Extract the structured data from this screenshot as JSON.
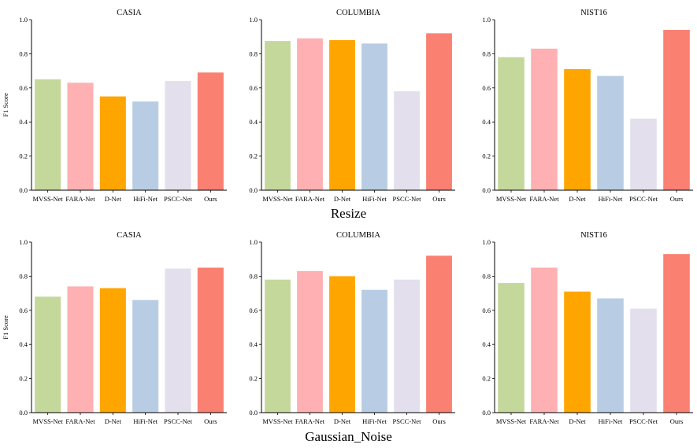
{
  "row_titles": [
    "Resize",
    "Gaussian_Noise"
  ],
  "chart_data": [
    {
      "type": "bar",
      "title": "CASIA",
      "categories": [
        "MVSS-Net",
        "FARA-Net",
        "D-Net",
        "HiFi-Net",
        "PSCC-Net",
        "Ours"
      ],
      "values": [
        0.65,
        0.63,
        0.55,
        0.52,
        0.64,
        0.69
      ],
      "xlabel": "",
      "ylabel": "F1 Score",
      "ylim": [
        0,
        1.0
      ],
      "yticks": [
        "0.0",
        "0.2",
        "0.4",
        "0.6",
        "0.8",
        "1.0"
      ],
      "grid": false
    },
    {
      "type": "bar",
      "title": "COLUMBIA",
      "categories": [
        "MVSS-Net",
        "FARA-Net",
        "D-Net",
        "HiFi-Net",
        "PSCC-Net",
        "Ours"
      ],
      "values": [
        0.875,
        0.89,
        0.88,
        0.86,
        0.58,
        0.92
      ],
      "xlabel": "",
      "ylabel": "",
      "ylim": [
        0,
        1.0
      ],
      "yticks": [
        "0.0",
        "0.2",
        "0.4",
        "0.6",
        "0.8",
        "1.0"
      ],
      "grid": false
    },
    {
      "type": "bar",
      "title": "NIST16",
      "categories": [
        "MVSS-Net",
        "FARA-Net",
        "D-Net",
        "HiFi-Net",
        "PSCC-Net",
        "Ours"
      ],
      "values": [
        0.78,
        0.83,
        0.71,
        0.67,
        0.42,
        0.94
      ],
      "xlabel": "",
      "ylabel": "",
      "ylim": [
        0,
        1.0
      ],
      "yticks": [
        "0.0",
        "0.2",
        "0.4",
        "0.6",
        "0.8",
        "1.0"
      ],
      "grid": false
    },
    {
      "type": "bar",
      "title": "CASIA",
      "categories": [
        "MVSS-Net",
        "FARA-Net",
        "D-Net",
        "HiFi-Net",
        "PSCC-Net",
        "Ours"
      ],
      "values": [
        0.68,
        0.74,
        0.73,
        0.66,
        0.845,
        0.85
      ],
      "xlabel": "",
      "ylabel": "F1 Score",
      "ylim": [
        0,
        1.0
      ],
      "yticks": [
        "0.0",
        "0.2",
        "0.4",
        "0.6",
        "0.8",
        "1.0"
      ],
      "grid": false
    },
    {
      "type": "bar",
      "title": "COLUMBIA",
      "categories": [
        "MVSS-Net",
        "FARA-Net",
        "D-Net",
        "HiFi-Net",
        "PSCC-Net",
        "Ours"
      ],
      "values": [
        0.78,
        0.83,
        0.8,
        0.72,
        0.78,
        0.92
      ],
      "xlabel": "",
      "ylabel": "",
      "ylim": [
        0,
        1.0
      ],
      "yticks": [
        "0.0",
        "0.2",
        "0.4",
        "0.6",
        "0.8",
        "1.0"
      ],
      "grid": false
    },
    {
      "type": "bar",
      "title": "NIST16",
      "categories": [
        "MVSS-Net",
        "FARA-Net",
        "D-Net",
        "HiFi-Net",
        "PSCC-Net",
        "Ours"
      ],
      "values": [
        0.76,
        0.85,
        0.71,
        0.67,
        0.61,
        0.93
      ],
      "xlabel": "",
      "ylabel": "",
      "ylim": [
        0,
        1.0
      ],
      "yticks": [
        "0.0",
        "0.2",
        "0.4",
        "0.6",
        "0.8",
        "1.0"
      ],
      "grid": false
    }
  ],
  "colors": {
    "bars": [
      "#c4d89c",
      "#ffb0b2",
      "#ffa500",
      "#b8cde3",
      "#e3dfec",
      "#fa8072"
    ],
    "axis": "#000000"
  }
}
